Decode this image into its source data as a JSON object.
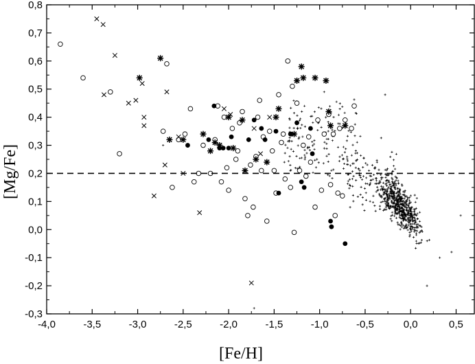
{
  "chart_data": {
    "type": "scatter",
    "title": "",
    "xlabel": "[Fe/H]",
    "ylabel": "[Mg/Fe]",
    "xlim": [
      -4.0,
      0.7
    ],
    "ylim": [
      -0.3,
      0.8
    ],
    "x_ticks": [
      -4.0,
      -3.5,
      -3.0,
      -2.5,
      -2.0,
      -1.5,
      -1.0,
      -0.5,
      0.0,
      0.5
    ],
    "x_tick_labels": [
      "-4,0",
      "-3,5",
      "-3,0",
      "-2,5",
      "-2,0",
      "-1,5",
      "-1,0",
      "-0,5",
      "0,0",
      "0,5"
    ],
    "y_ticks": [
      -0.3,
      -0.2,
      -0.1,
      0.0,
      0.1,
      0.2,
      0.3,
      0.4,
      0.5,
      0.6,
      0.7,
      0.8
    ],
    "y_tick_labels": [
      "-0,3",
      "-0,2",
      "-0,1",
      "0,0",
      "0,1",
      "0,2",
      "0,3",
      "0,4",
      "0,5",
      "0,6",
      "0,7",
      "0,8"
    ],
    "grid": false,
    "reference_line": {
      "y": 0.2,
      "style": "dashed"
    },
    "series": [
      {
        "marker": "open-circle",
        "points": [
          [
            -3.85,
            0.66
          ],
          [
            -3.6,
            0.54
          ],
          [
            -3.3,
            0.49
          ],
          [
            -3.2,
            0.27
          ],
          [
            -2.72,
            0.35
          ],
          [
            -2.68,
            0.59
          ],
          [
            -2.62,
            0.15
          ],
          [
            -2.55,
            0.32
          ],
          [
            -2.48,
            0.34
          ],
          [
            -2.42,
            0.43
          ],
          [
            -2.38,
            0.17
          ],
          [
            -2.33,
            0.2
          ],
          [
            -2.28,
            0.3
          ],
          [
            -2.2,
            0.2
          ],
          [
            -2.15,
            0.32
          ],
          [
            -2.12,
            0.44
          ],
          [
            -2.08,
            0.17
          ],
          [
            -2.05,
            0.4
          ],
          [
            -2.02,
            0.22
          ],
          [
            -2.0,
            0.14
          ],
          [
            -1.96,
            0.36
          ],
          [
            -1.92,
            0.25
          ],
          [
            -1.9,
            0.28
          ],
          [
            -1.88,
            0.38
          ],
          [
            -1.85,
            0.42
          ],
          [
            -1.82,
            0.11
          ],
          [
            -1.79,
            0.05
          ],
          [
            -1.76,
            0.23
          ],
          [
            -1.73,
            0.08
          ],
          [
            -1.7,
            0.26
          ],
          [
            -1.68,
            0.4
          ],
          [
            -1.66,
            0.46
          ],
          [
            -1.64,
            0.21
          ],
          [
            -1.62,
            0.33
          ],
          [
            -1.58,
            0.03
          ],
          [
            -1.55,
            0.35
          ],
          [
            -1.52,
            0.28
          ],
          [
            -1.5,
            0.21
          ],
          [
            -1.48,
            0.13
          ],
          [
            -1.45,
            0.48
          ],
          [
            -1.42,
            0.31
          ],
          [
            -1.4,
            0.34
          ],
          [
            -1.38,
            0.18
          ],
          [
            -1.35,
            0.6
          ],
          [
            -1.32,
            0.15
          ],
          [
            -1.3,
            0.51
          ],
          [
            -1.28,
            -0.01
          ],
          [
            -1.25,
            0.45
          ],
          [
            -1.22,
            0.21
          ],
          [
            -1.18,
            0.3
          ],
          [
            -1.15,
            0.19
          ],
          [
            -1.12,
            0.33
          ],
          [
            -1.1,
            0.24
          ],
          [
            -1.05,
            0.08
          ],
          [
            -1.02,
            0.39
          ],
          [
            -0.98,
            0.14
          ],
          [
            -0.95,
            0.34
          ],
          [
            -0.9,
            0.41
          ],
          [
            -0.88,
            0.16
          ],
          [
            -0.85,
            0.34
          ],
          [
            -0.83,
            0.05
          ],
          [
            -0.8,
            0.13
          ],
          [
            -0.78,
            0.36
          ],
          [
            -0.75,
            0.12
          ],
          [
            -0.72,
            0.39
          ],
          [
            -0.65,
            0.36
          ],
          [
            -0.62,
            0.44
          ]
        ]
      },
      {
        "marker": "filled-circle",
        "points": [
          [
            -2.45,
            0.3
          ],
          [
            -2.22,
            0.32
          ],
          [
            -2.16,
            0.44
          ],
          [
            -2.1,
            0.29
          ],
          [
            -2.06,
            0.29
          ],
          [
            -2.0,
            0.29
          ],
          [
            -1.97,
            0.33
          ],
          [
            -1.78,
            0.32
          ],
          [
            -1.72,
            0.39
          ],
          [
            -1.64,
            0.36
          ],
          [
            -1.6,
            0.32
          ],
          [
            -1.48,
            0.35
          ],
          [
            -1.45,
            0.13
          ],
          [
            -1.32,
            0.34
          ],
          [
            -1.25,
            0.38
          ],
          [
            -1.2,
            0.17
          ],
          [
            -1.17,
            0.15
          ],
          [
            -1.1,
            0.36
          ],
          [
            -1.08,
            0.27
          ],
          [
            -0.88,
            0.03
          ],
          [
            -0.87,
            0.01
          ],
          [
            -0.72,
            -0.05
          ]
        ]
      },
      {
        "marker": "cross",
        "points": [
          [
            -3.45,
            0.75
          ],
          [
            -3.38,
            0.73
          ],
          [
            -3.37,
            0.48
          ],
          [
            -3.25,
            0.62
          ],
          [
            -3.1,
            0.45
          ],
          [
            -3.02,
            0.46
          ],
          [
            -2.95,
            0.52
          ],
          [
            -2.93,
            0.4
          ],
          [
            -2.93,
            0.37
          ],
          [
            -2.82,
            0.12
          ],
          [
            -2.7,
            0.23
          ],
          [
            -2.68,
            0.49
          ],
          [
            -2.55,
            0.33
          ],
          [
            -2.5,
            0.2
          ],
          [
            -2.32,
            0.06
          ],
          [
            -2.05,
            0.43
          ],
          [
            -1.98,
            0.41
          ],
          [
            -1.75,
            -0.19
          ],
          [
            -1.72,
            0.36
          ],
          [
            -1.65,
            0.27
          ],
          [
            -1.55,
            0.4
          ]
        ]
      },
      {
        "marker": "asterisk",
        "points": [
          [
            -2.98,
            0.54
          ],
          [
            -2.75,
            0.61
          ],
          [
            -2.65,
            0.32
          ],
          [
            -2.5,
            0.32
          ],
          [
            -2.28,
            0.34
          ],
          [
            -2.2,
            0.28
          ],
          [
            -2.15,
            0.31
          ],
          [
            -2.1,
            0.3
          ],
          [
            -2.0,
            0.4
          ],
          [
            -1.95,
            0.29
          ],
          [
            -1.85,
            0.39
          ],
          [
            -1.82,
            0.21
          ],
          [
            -1.7,
            0.25
          ],
          [
            -1.58,
            0.24
          ],
          [
            -1.48,
            0.4
          ],
          [
            -1.45,
            0.43
          ],
          [
            -1.28,
            0.34
          ],
          [
            -1.25,
            0.53
          ],
          [
            -1.2,
            0.58
          ],
          [
            -1.18,
            0.54
          ],
          [
            -1.05,
            0.54
          ],
          [
            -0.93,
            0.53
          ],
          [
            -0.9,
            0.42
          ],
          [
            -0.88,
            0.37
          ],
          [
            -0.72,
            0.37
          ]
        ]
      },
      {
        "marker": "plus",
        "points": "dense disk-star cloud: about 700 small plus markers spanning [Fe/H] -1.5 to 0.5, concentrated near [Fe/H] -0.1, [Mg/Fe] 0.05"
      }
    ]
  }
}
